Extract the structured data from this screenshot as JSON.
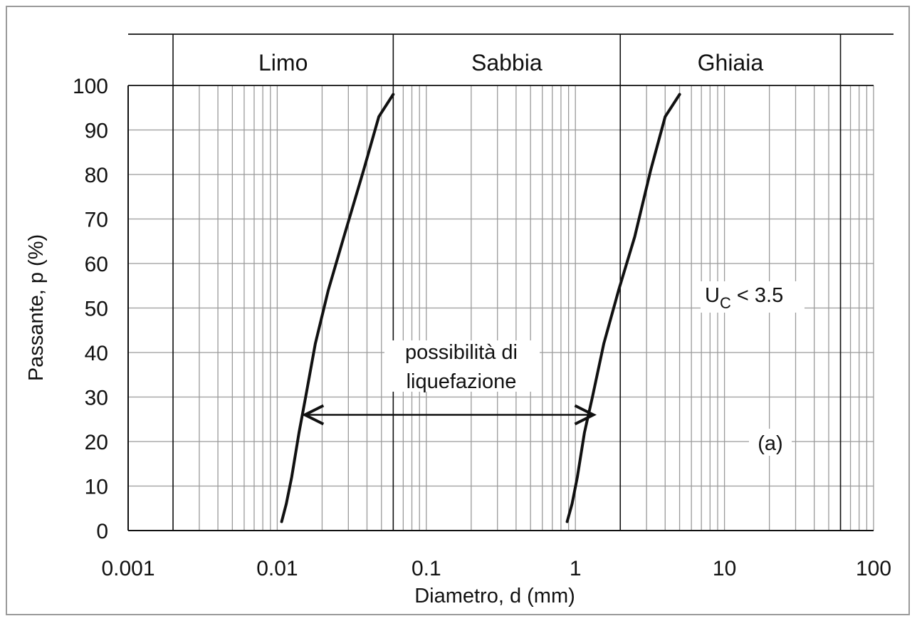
{
  "chart_data": {
    "type": "line",
    "xlabel": "Diametro, d  (mm)",
    "ylabel": "Passante, p  (%)",
    "x_scale": "log",
    "xlim": [
      0.001,
      100
    ],
    "ylim": [
      0,
      100
    ],
    "x_tick_labels": [
      "0.001",
      "0.01",
      "0.1",
      "1",
      "10",
      "100"
    ],
    "y_tick_labels": [
      "0",
      "10",
      "20",
      "30",
      "40",
      "50",
      "60",
      "70",
      "80",
      "90",
      "100"
    ],
    "grid": true,
    "soil_classes": {
      "boundaries_mm": [
        0.002,
        0.06,
        2,
        60
      ],
      "labels": [
        "Limo",
        "Sabbia",
        "Ghiaia"
      ]
    },
    "series": [
      {
        "x": [
          0.0107,
          0.0115,
          0.0125,
          0.014,
          0.0155,
          0.018,
          0.022,
          0.028,
          0.038,
          0.048,
          0.06
        ],
        "y": [
          2,
          6,
          12,
          22,
          30,
          42,
          54,
          66,
          81,
          93,
          98
        ]
      },
      {
        "x": [
          0.88,
          0.95,
          1.03,
          1.15,
          1.3,
          1.55,
          1.95,
          2.5,
          3.2,
          4.0,
          5.0
        ],
        "y": [
          2,
          6,
          12,
          22,
          30,
          42,
          54,
          66,
          81,
          93,
          98
        ]
      }
    ],
    "annotations": {
      "liquefaction_line1": "possibilità di",
      "liquefaction_line2": "liquefazione",
      "liquefaction_arrow": {
        "x_from": 0.015,
        "x_to": 1.35,
        "y": 26
      },
      "uc_main": "U",
      "uc_sub": "C",
      "uc_rest": " < 3.5",
      "panel_tag": "(a)"
    }
  }
}
